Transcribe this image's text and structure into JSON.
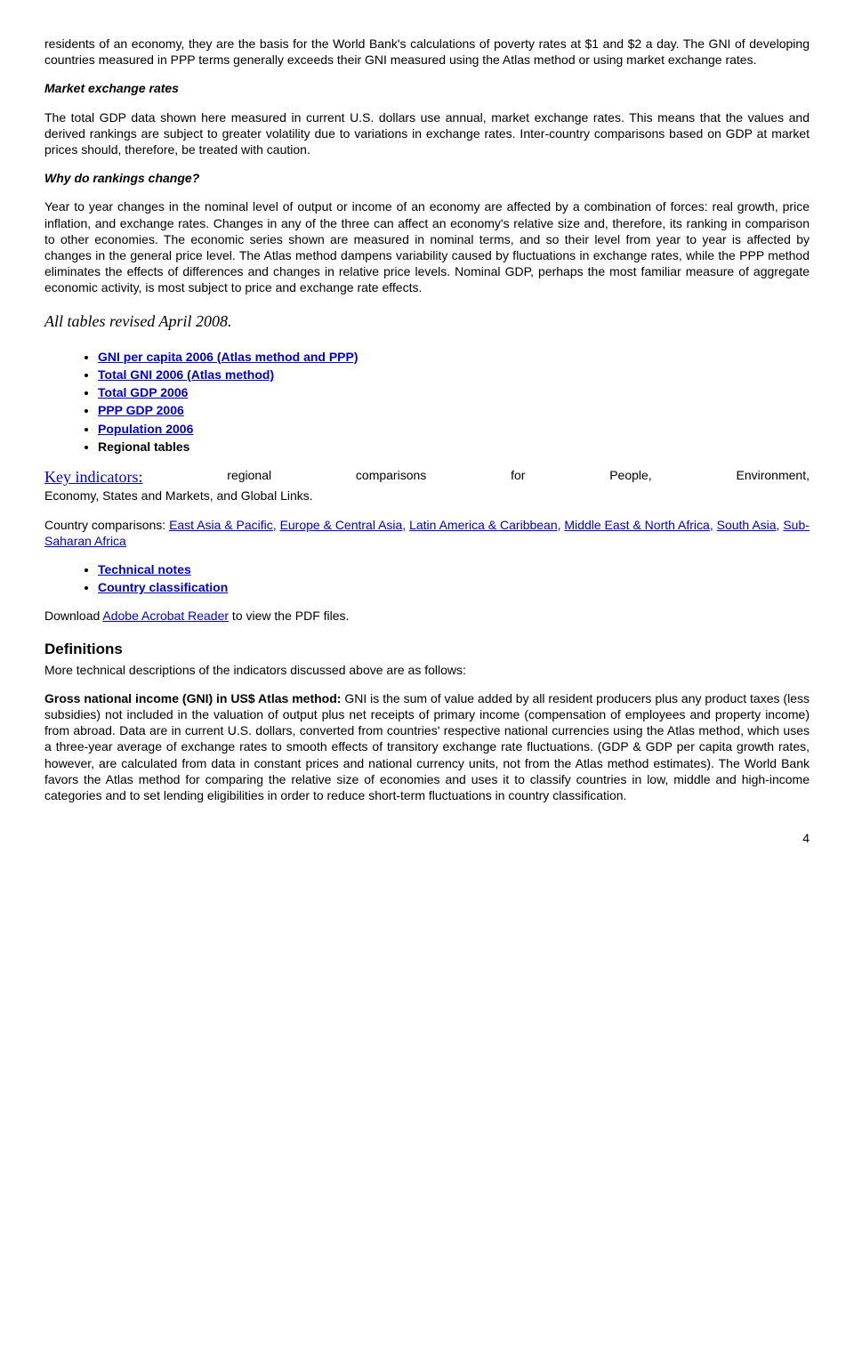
{
  "para1": "residents of an economy, they are the basis for the World Bank's calculations of poverty rates at $1 and $2 a day. The GNI of developing countries measured in PPP terms generally exceeds their GNI measured using the Atlas method or using market exchange rates.",
  "h_market": "Market exchange rates",
  "para2": "The total GDP data shown here measured in current U.S. dollars use annual, market exchange rates. This means that the values and derived rankings are subject to greater volatility due to variations in exchange rates. Inter-country comparisons based on GDP at market prices should, therefore, be treated with caution.",
  "h_why": "Why do rankings change?",
  "para3": "Year to year changes in the nominal level of output or income of an economy are affected by a combination of forces: real growth, price inflation, and exchange rates. Changes in any of the three can affect an economy's relative size and, therefore, its ranking in comparison to other economies. The economic series shown are measured in nominal terms, and so their level from year to year is affected by changes in the general price level. The Atlas method dampens variability caused by fluctuations in exchange rates, while the PPP method eliminates the effects of differences and changes in relative price levels. Nominal GDP, perhaps the most familiar measure of aggregate economic activity, is most subject to price and exchange rate effects.",
  "h_revised": "All tables revised April 2008.",
  "links1": {
    "l0": "GNI per capita 2006 (Atlas method and PPP)",
    "l1": "Total GNI 2006 (Atlas method)",
    "l2": "Total GDP 2006",
    "l3": "PPP GDP 2006",
    "l4": "Population 2006",
    "l5": "Regional tables"
  },
  "key_link": "Key indicators:",
  "key_rest1": " regional comparisons for People, Environment,",
  "key_rest2": "Economy, States and Markets, and Global Links.",
  "cc_pre": "Country comparisons: ",
  "cc": {
    "l0": "East Asia & Pacific,",
    "l1": "Europe & Central Asia,",
    "l2": "Latin America & Caribbean,",
    "l3": "Middle East & North Africa,",
    "l4": "South Asia,",
    "l5": "Sub-Saharan Africa"
  },
  "links2": {
    "l0": "Technical notes",
    "l1": "Country classification"
  },
  "dl_pre": "Download ",
  "dl_link": "Adobe Acrobat Reader",
  "dl_post": " to view the PDF files.",
  "h_def": "Definitions",
  "def_intro": "More technical descriptions of the indicators discussed above are as follows:",
  "gni_bold": "Gross national income (GNI) in US$ Atlas method:",
  "gni_body": " GNI is the sum of value added by all resident producers plus any product taxes (less subsidies) not included in the valuation of output plus net receipts of primary income (compensation of employees and property income) from abroad. Data are in current U.S. dollars, converted from countries' respective national currencies using the Atlas method, which uses a three-year average of exchange rates to smooth effects of transitory exchange rate fluctuations. (GDP & GDP per capita growth rates, however, are calculated from data in constant prices and national currency units, not from the Atlas method estimates). The World Bank favors the Atlas method for comparing the relative size of economies and uses it to classify countries in low, middle and high-income categories and to set lending eligibilities in order to reduce short-term fluctuations in country classification.",
  "page_no": "4"
}
